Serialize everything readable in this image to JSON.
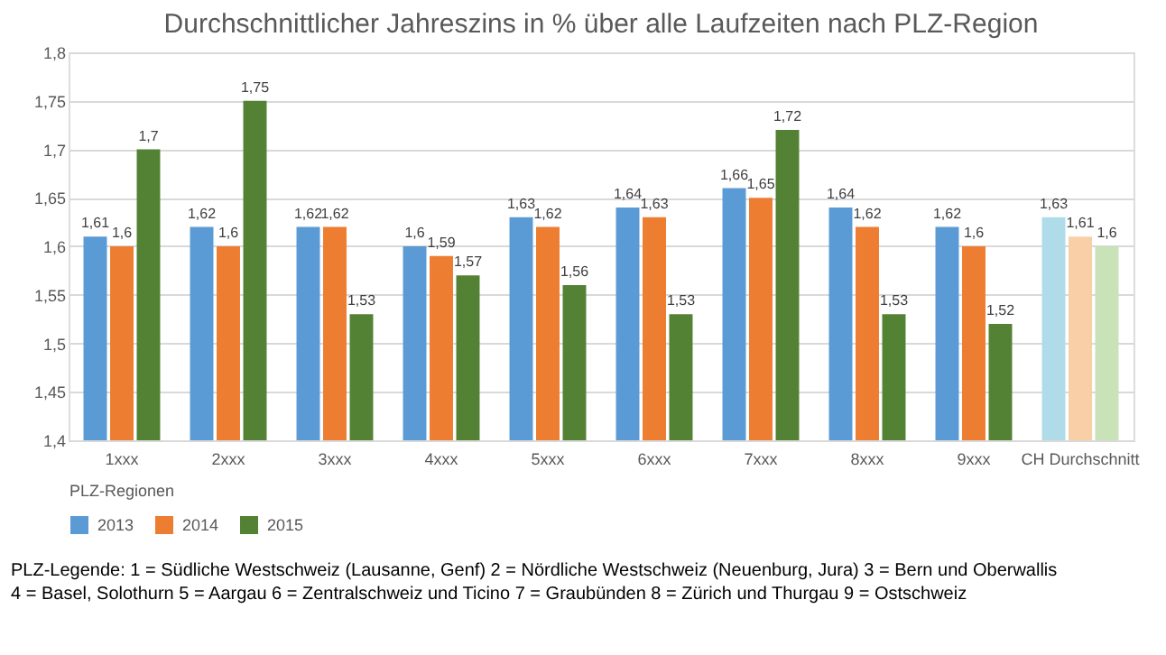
{
  "chart_data": {
    "type": "bar",
    "title": "Durchschnittlicher Jahreszins in % über alle Laufzeiten nach PLZ-Region",
    "categories": [
      "1xxx",
      "2xxx",
      "3xxx",
      "4xxx",
      "5xxx",
      "6xxx",
      "7xxx",
      "8xxx",
      "9xxx",
      "CH Durchschnitt"
    ],
    "series": [
      {
        "name": "2013",
        "color": "#5b9bd5",
        "colors": [
          "#5b9bd5",
          "#5b9bd5",
          "#5b9bd5",
          "#5b9bd5",
          "#5b9bd5",
          "#5b9bd5",
          "#5b9bd5",
          "#5b9bd5",
          "#5b9bd5",
          "#b0dcea"
        ],
        "values": [
          1.61,
          1.62,
          1.62,
          1.6,
          1.63,
          1.64,
          1.66,
          1.64,
          1.62,
          1.63
        ],
        "value_labels": [
          "1,61",
          "1,62",
          "1,62",
          "1,6",
          "1,63",
          "1,64",
          "1,66",
          "1,64",
          "1,62",
          "1,63"
        ]
      },
      {
        "name": "2014",
        "color": "#ed7d31",
        "colors": [
          "#ed7d31",
          "#ed7d31",
          "#ed7d31",
          "#ed7d31",
          "#ed7d31",
          "#ed7d31",
          "#ed7d31",
          "#ed7d31",
          "#ed7d31",
          "#f8cfa6"
        ],
        "values": [
          1.6,
          1.6,
          1.62,
          1.59,
          1.62,
          1.63,
          1.65,
          1.62,
          1.6,
          1.61
        ],
        "value_labels": [
          "1,6",
          "1,6",
          "1,62",
          "1,59",
          "1,62",
          "1,63",
          "1,65",
          "1,62",
          "1,6",
          "1,61"
        ]
      },
      {
        "name": "2015",
        "color": "#548235",
        "colors": [
          "#548235",
          "#548235",
          "#548235",
          "#548235",
          "#548235",
          "#548235",
          "#548235",
          "#548235",
          "#548235",
          "#c9e2b8"
        ],
        "values": [
          1.7,
          1.75,
          1.53,
          1.57,
          1.56,
          1.53,
          1.72,
          1.53,
          1.52,
          1.6
        ],
        "value_labels": [
          "1,7",
          "1,75",
          "1,53",
          "1,57",
          "1,56",
          "1,53",
          "1,72",
          "1,53",
          "1,52",
          "1,6"
        ]
      }
    ],
    "ylim": [
      1.4,
      1.8
    ],
    "yticks": [
      {
        "value": 1.4,
        "label": "1,4"
      },
      {
        "value": 1.45,
        "label": "1,45"
      },
      {
        "value": 1.5,
        "label": "1,5"
      },
      {
        "value": 1.55,
        "label": "1,55"
      },
      {
        "value": 1.6,
        "label": "1,6"
      },
      {
        "value": 1.65,
        "label": "1,65"
      },
      {
        "value": 1.7,
        "label": "1,7"
      },
      {
        "value": 1.75,
        "label": "1,75"
      },
      {
        "value": 1.8,
        "label": "1,8"
      }
    ],
    "grid": "y",
    "legend": "bottom",
    "annotations": [
      "PLZ-Regionen",
      "PLZ-Legende: 1 = Südliche Westschweiz (Lausanne, Genf) 2 = Nördliche Westschweiz (Neuenburg, Jura) 3 = Bern und Oberwallis",
      "4 = Basel, Solothurn 5 = Aargau 6 = Zentralschweiz und Ticino 7 = Graubünden 8 = Zürich und Thurgau 9 = Ostschweiz"
    ]
  }
}
